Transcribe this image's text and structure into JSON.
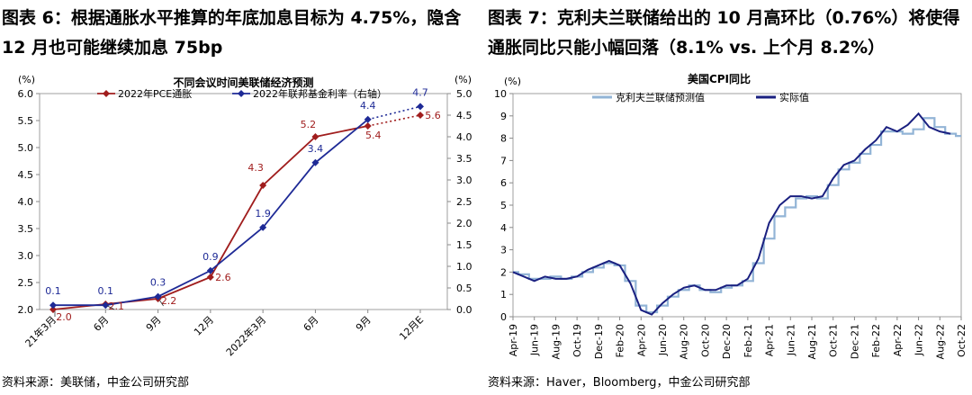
{
  "left": {
    "figure_title": "图表 6：根据通胀水平推算的年底加息目标为 4.75%，隐含 12 月也可能继续加息 75bp",
    "source": "资料来源：美联储，中金公司研究部",
    "colors": {
      "pce": "#A01D1D",
      "ffr": "#1E2A96"
    },
    "chart_data": {
      "type": "line",
      "title": "不同会议时间美联储经济预测",
      "categories": [
        "21年3月",
        "6月",
        "9月",
        "12月",
        "2022年3月",
        "6月",
        "9月",
        "12月E"
      ],
      "y_left_unit": "(%)",
      "y_right_unit": "(%)",
      "y_left_lim": [
        2.0,
        6.0
      ],
      "y_left_ticks": [
        "2.0",
        "2.5",
        "3.0",
        "3.5",
        "4.0",
        "4.5",
        "5.0",
        "5.5",
        "6.0"
      ],
      "y_right_lim": [
        0.0,
        5.0
      ],
      "y_right_ticks": [
        "0.0",
        "0.5",
        "1.0",
        "1.5",
        "2.0",
        "2.5",
        "3.0",
        "3.5",
        "4.0",
        "4.5",
        "5.0"
      ],
      "series": [
        {
          "name": "2022年PCE通胀",
          "axis": "left",
          "values": [
            2.0,
            2.1,
            2.2,
            2.6,
            4.3,
            5.2,
            5.4,
            5.6
          ],
          "labels": [
            "2.0",
            "2.1",
            "2.2",
            "2.6",
            "4.3",
            "5.2",
            "5.4",
            "5.6"
          ]
        },
        {
          "name": "2022年联邦基金利率（右轴）",
          "axis": "right",
          "values": [
            0.1,
            0.1,
            0.3,
            0.9,
            1.9,
            3.4,
            4.4,
            4.7
          ],
          "labels": [
            "0.1",
            "0.1",
            "0.3",
            "0.9",
            "1.9",
            "3.4",
            "4.4",
            "4.7"
          ]
        }
      ],
      "dashed_last_segment": true
    }
  },
  "right": {
    "figure_title": "图表 7：克利夫兰联储给出的 10 月高环比（0.76%）将使得通胀同比只能小幅回落（8.1% vs. 上个月 8.2%）",
    "source": "资料来源：Haver，Bloomberg，中金公司研究部",
    "colors": {
      "forecast": "#92B4D6",
      "actual": "#1A2080"
    },
    "chart_data": {
      "type": "line",
      "title": "美国CPI同比",
      "y_unit": "(%)",
      "ylim": [
        0,
        10
      ],
      "y_ticks": [
        "0",
        "1",
        "2",
        "3",
        "4",
        "5",
        "6",
        "7",
        "8",
        "9",
        "10"
      ],
      "x_tick_labels": [
        "Apr-19",
        "Jun-19",
        "Aug-19",
        "Oct-19",
        "Dec-19",
        "Feb-20",
        "Apr-20",
        "Jun-20",
        "Aug-20",
        "Oct-20",
        "Dec-20",
        "Feb-21",
        "Apr-21",
        "Jun-21",
        "Aug-21",
        "Oct-21",
        "Dec-21",
        "Feb-22",
        "Apr-22",
        "Jun-22",
        "Aug-22",
        "Oct-22"
      ],
      "months": [
        "Apr-19",
        "May-19",
        "Jun-19",
        "Jul-19",
        "Aug-19",
        "Sep-19",
        "Oct-19",
        "Nov-19",
        "Dec-19",
        "Jan-20",
        "Feb-20",
        "Mar-20",
        "Apr-20",
        "May-20",
        "Jun-20",
        "Jul-20",
        "Aug-20",
        "Sep-20",
        "Oct-20",
        "Nov-20",
        "Dec-20",
        "Jan-21",
        "Feb-21",
        "Mar-21",
        "Apr-21",
        "May-21",
        "Jun-21",
        "Jul-21",
        "Aug-21",
        "Sep-21",
        "Oct-21",
        "Nov-21",
        "Dec-21",
        "Jan-22",
        "Feb-22",
        "Mar-22",
        "Apr-22",
        "May-22",
        "Jun-22",
        "Jul-22",
        "Aug-22",
        "Sep-22",
        "Oct-22"
      ],
      "series": [
        {
          "name": "克利夫兰联储预测值",
          "style": "step",
          "values": [
            2.0,
            1.9,
            1.7,
            1.7,
            1.8,
            1.7,
            1.8,
            2.0,
            2.2,
            2.4,
            2.3,
            1.6,
            0.5,
            0.2,
            0.5,
            0.9,
            1.2,
            1.4,
            1.2,
            1.1,
            1.3,
            1.4,
            1.6,
            2.4,
            3.5,
            4.5,
            4.9,
            5.3,
            5.4,
            5.3,
            5.9,
            6.6,
            6.9,
            7.3,
            7.7,
            8.3,
            8.3,
            8.2,
            8.4,
            8.9,
            8.5,
            8.2,
            8.1
          ]
        },
        {
          "name": "实际值",
          "style": "line",
          "values": [
            2.0,
            1.8,
            1.6,
            1.8,
            1.7,
            1.7,
            1.8,
            2.1,
            2.3,
            2.5,
            2.3,
            1.5,
            0.3,
            0.1,
            0.6,
            1.0,
            1.3,
            1.4,
            1.2,
            1.2,
            1.4,
            1.4,
            1.7,
            2.6,
            4.2,
            5.0,
            5.4,
            5.4,
            5.3,
            5.4,
            6.2,
            6.8,
            7.0,
            7.5,
            7.9,
            8.5,
            8.3,
            8.6,
            9.1,
            8.5,
            8.3,
            8.2,
            null
          ]
        }
      ]
    }
  }
}
